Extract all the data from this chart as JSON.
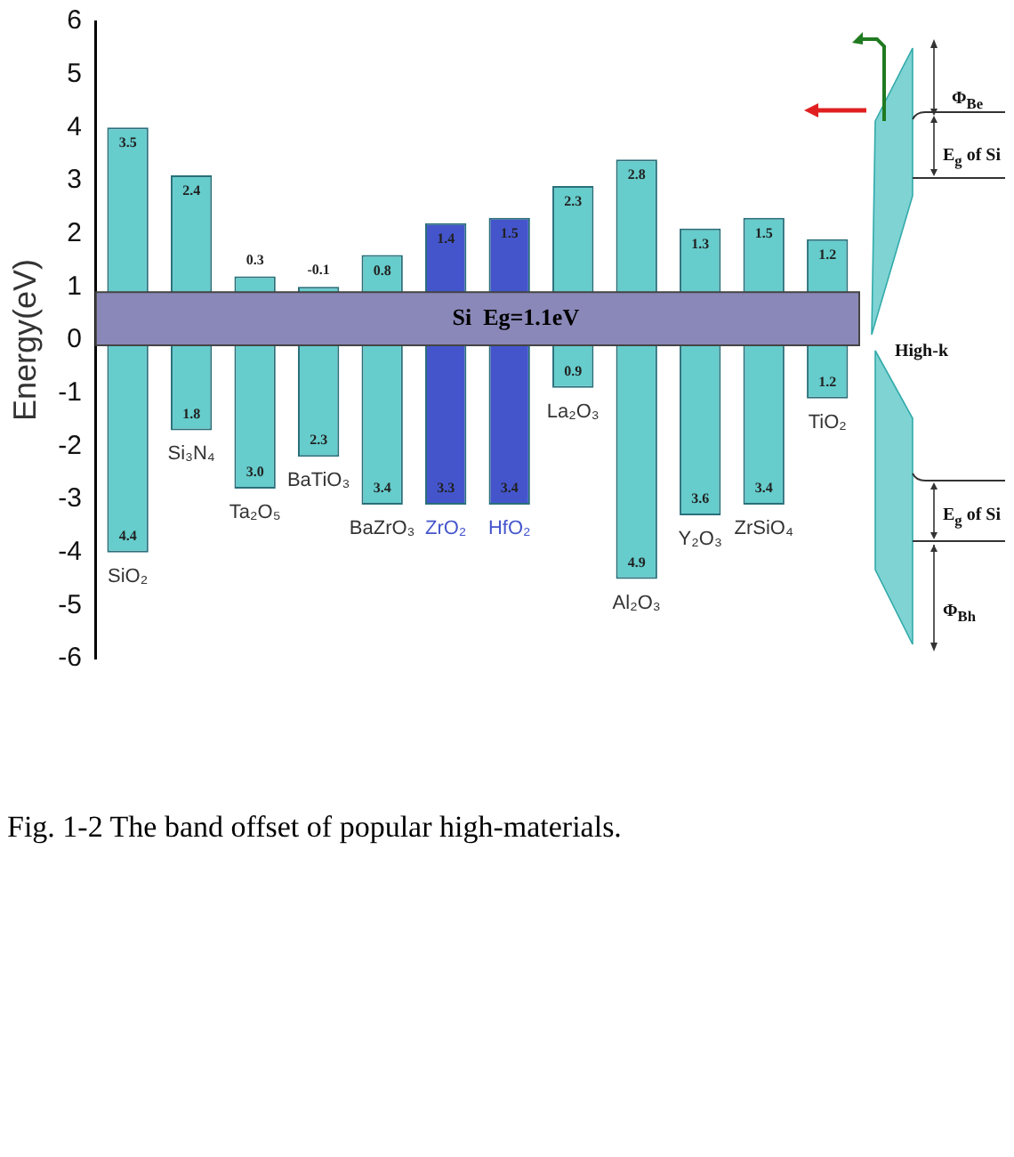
{
  "chart_data": {
    "type": "bar",
    "ylabel": "Energy(eV)",
    "categories": [
      "SiO₂",
      "Si₃N₄",
      "Ta₂O₅",
      "BaTiO₃",
      "BaZrO₃",
      "ZrO₂",
      "HfO₂",
      "La₂O₃",
      "Al₂O₃",
      "Y₂O₃",
      "ZrSiO₄",
      "TiO₂"
    ],
    "base": [
      -4.0,
      -1.7,
      -2.8,
      -2.2,
      -3.1,
      -3.1,
      -3.1,
      -0.9,
      -4.5,
      -3.3,
      -3.1,
      -1.1
    ],
    "values": [
      8.0,
      4.8,
      4.0,
      3.2,
      4.7,
      5.3,
      5.4,
      3.8,
      7.9,
      5.4,
      5.4,
      3.0
    ],
    "colors": [
      "#66cccc",
      "#66cccc",
      "#66cccc",
      "#66cccc",
      "#66cccc",
      "#4455cc",
      "#4455cc",
      "#66cccc",
      "#66cccc",
      "#66cccc",
      "#66cccc",
      "#66cccc"
    ],
    "ylim": [
      -6,
      6
    ],
    "yticks": [
      -6,
      -5,
      -4,
      -3,
      -2,
      -1,
      0,
      1,
      2,
      3,
      4,
      5,
      6
    ],
    "grid": false,
    "legend": false,
    "bands": [
      {
        "axis": "y",
        "from": -0.1,
        "to": 0.9,
        "label": "Si  Eg=1.1eV",
        "color": "#8a88b8"
      }
    ],
    "annotations": [
      {
        "text": "3.5",
        "x": "SiO₂",
        "y": 4.0
      },
      {
        "text": "4.4",
        "x": "SiO₂",
        "y": -4.0
      },
      {
        "text": "2.4",
        "x": "Si₃N₄",
        "y": 3.1
      },
      {
        "text": "1.8",
        "x": "Si₃N₄",
        "y": -1.7
      },
      {
        "text": "0.3",
        "x": "Ta₂O₅",
        "y": 1.2
      },
      {
        "text": "3.0",
        "x": "Ta₂O₅",
        "y": -2.8
      },
      {
        "text": "-0.1",
        "x": "BaTiO₃",
        "y": 1.0
      },
      {
        "text": "2.3",
        "x": "BaTiO₃",
        "y": -2.2
      },
      {
        "text": "0.8",
        "x": "BaZrO₃",
        "y": 1.6
      },
      {
        "text": "3.4",
        "x": "BaZrO₃",
        "y": -3.1
      },
      {
        "text": "1.4",
        "x": "ZrO₂",
        "y": 2.2
      },
      {
        "text": "3.3",
        "x": "ZrO₂",
        "y": -3.1
      },
      {
        "text": "1.5",
        "x": "HfO₂",
        "y": 2.3
      },
      {
        "text": "3.4",
        "x": "HfO₂",
        "y": -3.1
      },
      {
        "text": "2.3",
        "x": "La₂O₃",
        "y": 2.9
      },
      {
        "text": "0.9",
        "x": "La₂O₃",
        "y": -0.9
      },
      {
        "text": "2.8",
        "x": "Al₂O₃",
        "y": 3.4
      },
      {
        "text": "4.9",
        "x": "Al₂O₃",
        "y": -4.5
      },
      {
        "text": "1.3",
        "x": "Y₂O₃",
        "y": 2.1
      },
      {
        "text": "3.6",
        "x": "Y₂O₃",
        "y": -3.3
      },
      {
        "text": "1.5",
        "x": "ZrSiO₄",
        "y": 2.3
      },
      {
        "text": "3.4",
        "x": "ZrSiO₄",
        "y": -3.1
      },
      {
        "text": "1.2",
        "x": "TiO₂",
        "y": 1.9
      },
      {
        "text": "1.2",
        "x": "TiO₂",
        "y": -1.1
      },
      "Φ$_{Be}$",
      "E$_{g}$ of Si",
      "High-k",
      "E$_{g}$ of Si",
      "Φ$_{Bh}$",
      "Fig. 1-2 The band offset of popular high-materials."
    ]
  }
}
